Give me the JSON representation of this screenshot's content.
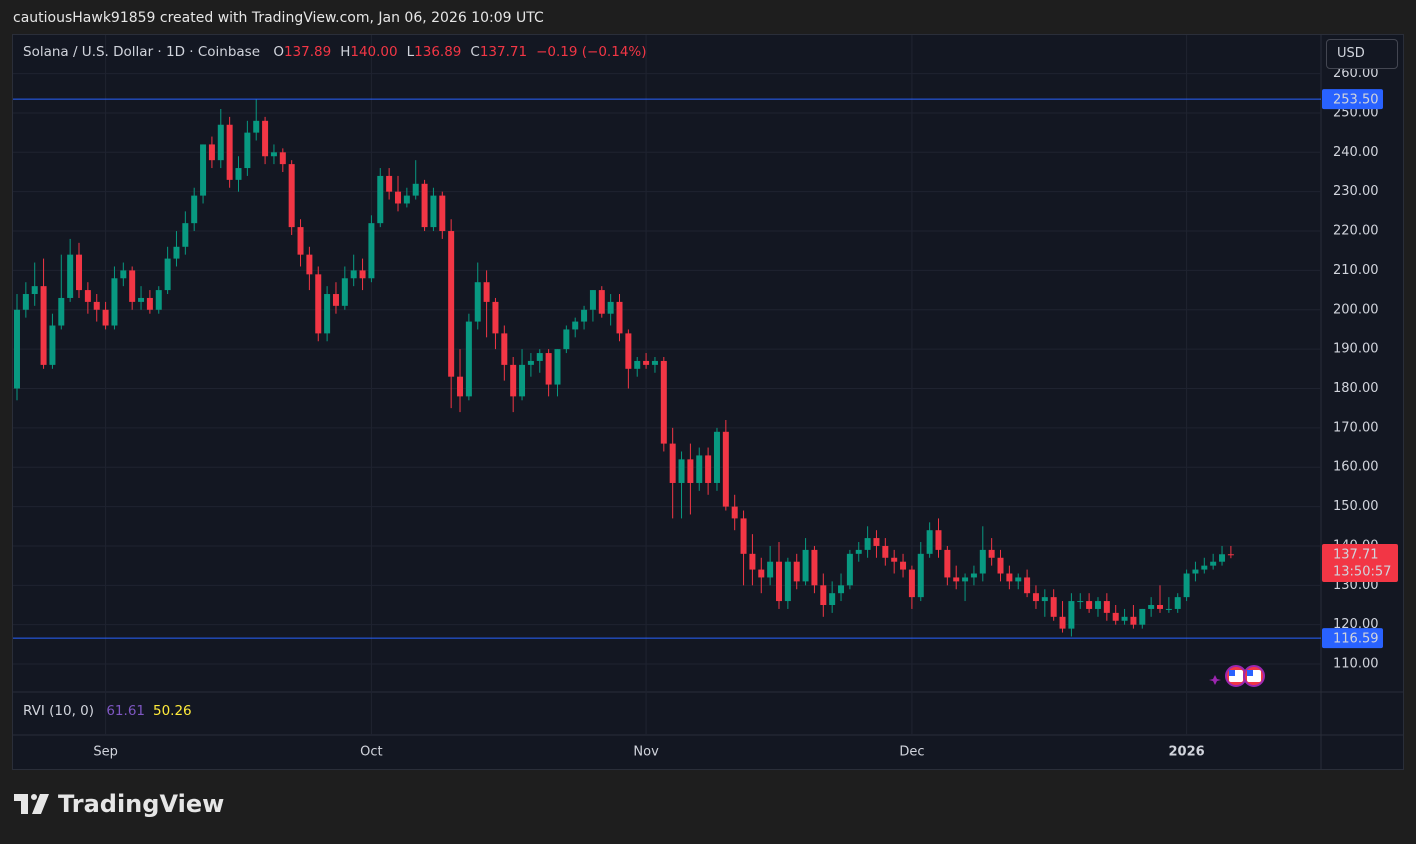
{
  "header": {
    "credit": "cautiousHawk91859 created with TradingView.com, Jan 06, 2026 10:09 UTC"
  },
  "footer": {
    "brand": "TradingView"
  },
  "chart_data": {
    "type": "candlestick",
    "currency": "USD",
    "legend": {
      "symbol": "Solana / U.S. Dollar · 1D · Coinbase",
      "ohlc": [
        {
          "key": "O",
          "value": 137.89
        },
        {
          "key": "H",
          "value": {
            "value": 140,
            "label": "140.00"
          }
        },
        {
          "key": "L",
          "value": 136.89
        },
        {
          "key": "C",
          "value": 137.71
        }
      ],
      "change": {
        "value": -0.19,
        "label": "−0.19"
      },
      "change_pct": {
        "value": -0.14,
        "label": "(−0.14%)"
      }
    },
    "series": [
      {
        "name": "Solana / U.S. Dollar",
        "up_color": "#089981",
        "down_color": "#f23645",
        "open": [
          180,
          200,
          204,
          206,
          186,
          196,
          203,
          214,
          205,
          202,
          200,
          196,
          208,
          210,
          202,
          203,
          200,
          205,
          213,
          216,
          222,
          229,
          242,
          238,
          247,
          233,
          236,
          245,
          248,
          239,
          240,
          237,
          221,
          214,
          209,
          194,
          204,
          201,
          208,
          210,
          208,
          222,
          234,
          230,
          227,
          229,
          232,
          221,
          229,
          220,
          183,
          178,
          197,
          207,
          202,
          194,
          186,
          178,
          186,
          187,
          189,
          181,
          190,
          195,
          197,
          200,
          205,
          199,
          202,
          194,
          185,
          187,
          186,
          187,
          166,
          156,
          162,
          156,
          163,
          156,
          169,
          150,
          147,
          138,
          134,
          132,
          136,
          126,
          136,
          131,
          139,
          130,
          125,
          128,
          130,
          138,
          139,
          142,
          140,
          137,
          136,
          134,
          127,
          138,
          144,
          139,
          132,
          131,
          132,
          133,
          139,
          137,
          133,
          131,
          132,
          128,
          126,
          127,
          122,
          119,
          126,
          126,
          124,
          126,
          123,
          121,
          122,
          120,
          124,
          125,
          124,
          124,
          127,
          133,
          134,
          135,
          136,
          137.89
        ],
        "high": [
          204,
          207,
          212,
          213,
          199,
          214,
          218,
          217,
          207,
          204,
          202,
          211,
          212,
          211,
          206,
          205,
          206,
          216,
          220,
          225,
          231,
          242,
          244,
          251,
          249,
          239,
          248,
          253.5,
          249,
          242,
          241,
          238,
          223,
          216,
          211,
          206,
          207,
          211,
          214,
          213,
          224,
          236,
          236,
          234,
          231,
          238,
          233,
          231,
          230,
          223,
          190,
          199,
          212,
          210,
          203,
          196,
          188,
          190,
          189,
          190,
          190,
          190,
          196,
          198,
          201,
          205,
          206,
          204,
          204,
          195,
          188,
          189,
          188,
          188,
          170,
          164,
          166,
          165,
          165,
          170,
          172,
          153,
          149,
          143,
          137,
          140,
          141,
          137,
          138,
          142,
          140,
          133,
          131,
          133,
          139,
          141,
          145,
          144,
          142,
          139,
          138,
          135,
          141,
          146,
          147,
          140,
          135,
          133,
          135,
          145,
          142,
          139,
          135,
          133,
          134,
          130,
          129,
          129,
          126,
          128,
          128,
          128,
          127,
          128,
          125,
          124,
          125,
          124,
          127,
          130,
          127,
          128,
          134,
          136,
          137,
          138,
          140,
          140
        ],
        "low": [
          177,
          198,
          201,
          185,
          185,
          195,
          202,
          203,
          199,
          197,
          195,
          195,
          206,
          200,
          200,
          199,
          199,
          204,
          211,
          214,
          220,
          227,
          236,
          236,
          231,
          230,
          234,
          243,
          237,
          237,
          235,
          219,
          211,
          205,
          192,
          192,
          199,
          200,
          206,
          205,
          207,
          221,
          228,
          225,
          226,
          228,
          220,
          220,
          218,
          175,
          174,
          177,
          195,
          193,
          190,
          182,
          174,
          177,
          183,
          184,
          178,
          178,
          189,
          193,
          195,
          197,
          198,
          196,
          192,
          180,
          183,
          185,
          184,
          164,
          147,
          147,
          148,
          154,
          153,
          154,
          149,
          144,
          130,
          130,
          128,
          130,
          124,
          124,
          129,
          130,
          128,
          122,
          123,
          126,
          129,
          136,
          137,
          137,
          135,
          133,
          132,
          124,
          126,
          137,
          137,
          130,
          129,
          126,
          130,
          131,
          135,
          131,
          129,
          129,
          127,
          124,
          122,
          121,
          118,
          117,
          124,
          123,
          122,
          121,
          120,
          120,
          119,
          119,
          122,
          123,
          123,
          123,
          126,
          131,
          133,
          134,
          135,
          136.89
        ],
        "close": [
          200,
          204,
          206,
          186,
          196,
          203,
          214,
          205,
          202,
          200,
          196,
          208,
          210,
          202,
          203,
          200,
          205,
          213,
          216,
          222,
          229,
          242,
          238,
          247,
          233,
          236,
          245,
          248,
          239,
          240,
          237,
          221,
          214,
          209,
          194,
          204,
          201,
          208,
          210,
          208,
          222,
          234,
          230,
          227,
          229,
          232,
          221,
          229,
          220,
          183,
          178,
          197,
          207,
          202,
          194,
          186,
          178,
          186,
          187,
          189,
          181,
          190,
          195,
          197,
          200,
          205,
          199,
          202,
          194,
          185,
          187,
          186,
          187,
          166,
          156,
          162,
          156,
          163,
          156,
          169,
          150,
          147,
          138,
          134,
          132,
          136,
          126,
          136,
          131,
          139,
          130,
          125,
          128,
          130,
          138,
          139,
          142,
          140,
          137,
          136,
          134,
          127,
          138,
          144,
          139,
          132,
          131,
          132,
          133,
          139,
          137,
          133,
          131,
          132,
          128,
          126,
          127,
          122,
          119,
          126,
          126,
          124,
          126,
          123,
          121,
          122,
          120,
          124,
          125,
          124,
          124,
          127,
          133,
          134,
          135,
          136,
          137.89,
          137.71
        ]
      }
    ],
    "xlim": [
      -0.45,
      147.17
    ],
    "xticks": [
      {
        "value": 10,
        "label": "Sep"
      },
      {
        "value": 40,
        "label": "Oct"
      },
      {
        "value": 71,
        "label": "Nov"
      },
      {
        "value": 101,
        "label": "Dec"
      },
      {
        "value": 132,
        "label": "2026"
      }
    ],
    "ylim": [
      102.9,
      269.8
    ],
    "yticks": [
      {
        "value": 110,
        "label": "110.00"
      },
      {
        "value": 120,
        "label": "120.00"
      },
      {
        "value": 130,
        "label": "130.00"
      },
      {
        "value": 140,
        "label": "140.00"
      },
      {
        "value": 150,
        "label": "150.00"
      },
      {
        "value": 160,
        "label": "160.00"
      },
      {
        "value": 170,
        "label": "170.00"
      },
      {
        "value": 180,
        "label": "180.00"
      },
      {
        "value": 190,
        "label": "190.00"
      },
      {
        "value": 200,
        "label": "200.00"
      },
      {
        "value": 210,
        "label": "210.00"
      },
      {
        "value": 220,
        "label": "220.00"
      },
      {
        "value": 230,
        "label": "230.00"
      },
      {
        "value": 240,
        "label": "240.00"
      },
      {
        "value": 250,
        "label": "250.00"
      },
      {
        "value": 260,
        "label": "260.00"
      }
    ],
    "grid": true,
    "hlines": [
      {
        "value": 253.5,
        "label": "253.50",
        "color": "#2962ff"
      },
      {
        "value": 116.59,
        "label": "116.59",
        "color": "#2962ff"
      }
    ],
    "last_price": {
      "value": 137.71,
      "countdown": "13:50:57",
      "color": "#f23645"
    },
    "indicator": {
      "name": "RVI (10, 0)",
      "values": [
        {
          "value": 61.61,
          "color": "#7e57c2"
        },
        {
          "value": 50.26,
          "color": "#ffeb3b"
        }
      ]
    }
  }
}
